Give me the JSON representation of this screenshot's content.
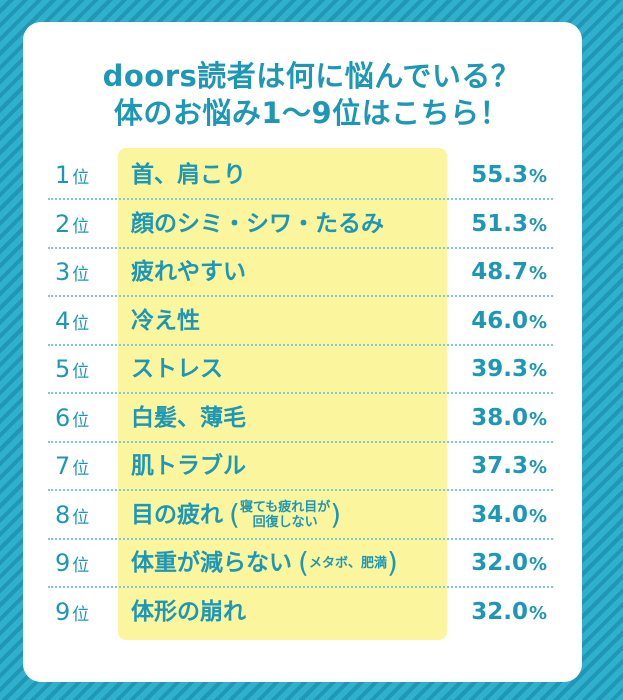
{
  "title_line1": "doors読者は何に悩んでいる？",
  "title_line2": "体のお悩み1～9位はこちら！",
  "rank_suffix": "位",
  "percent_sign": "%",
  "colors": {
    "accent": "#1d97b6",
    "highlight": "#fbf59d",
    "background": "#2aa7c4"
  },
  "chart_data": {
    "type": "table",
    "unit": "%",
    "rows": [
      {
        "rank": "1",
        "label": "首、肩こり",
        "value": "55.3"
      },
      {
        "rank": "2",
        "label": "顔のシミ・シワ・たるみ",
        "value": "51.3"
      },
      {
        "rank": "3",
        "label": "疲れやすい",
        "value": "48.7"
      },
      {
        "rank": "4",
        "label": "冷え性",
        "value": "46.0"
      },
      {
        "rank": "5",
        "label": "ストレス",
        "value": "39.3"
      },
      {
        "rank": "6",
        "label": "白髪、薄毛",
        "value": "38.0"
      },
      {
        "rank": "7",
        "label": "肌トラブル",
        "value": "37.3"
      },
      {
        "rank": "8",
        "label": "目の疲れ",
        "note_line1": "寝ても疲れ目が",
        "note_line2": "回復しない",
        "value": "34.0"
      },
      {
        "rank": "9",
        "label": "体重が減らない",
        "note_line1": "メタボ、肥満",
        "value": "32.0"
      },
      {
        "rank": "9",
        "label": "体形の崩れ",
        "value": "32.0"
      }
    ]
  }
}
